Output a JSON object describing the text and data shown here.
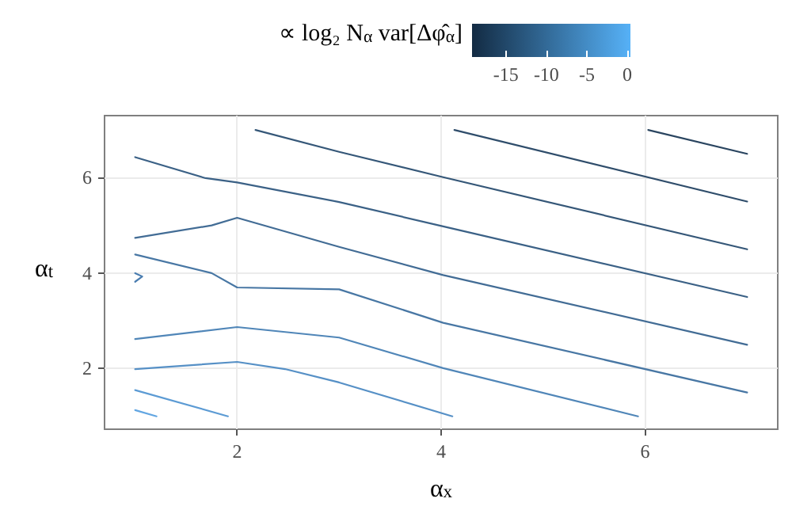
{
  "chart_data": {
    "type": "line",
    "xlabel": "α$_{x}$",
    "ylabel": "α$_{t}$",
    "clabel": "∝ log₂ N$_{α}$ var[Δφ̂$_{α}$]",
    "clim": [
      -19.2,
      0.4
    ],
    "cticks": [
      -15,
      -10,
      -5,
      0
    ],
    "xlim": [
      0.7,
      7.3
    ],
    "ylim": [
      0.73,
      7.3
    ],
    "xticks": [
      2,
      4,
      6
    ],
    "yticks": [
      2,
      4,
      6
    ],
    "grid": true,
    "marker": "none",
    "line_style": "solid",
    "series": [
      {
        "color": "#2a4560",
        "x": [
          6.03,
          7
        ],
        "values": [
          7.0,
          6.5
        ]
      },
      {
        "color": "#2f4d6b",
        "x": [
          4.13,
          7
        ],
        "values": [
          7.0,
          5.5
        ]
      },
      {
        "color": "#355778",
        "x": [
          2.18,
          3.0,
          4.02,
          7
        ],
        "values": [
          7.0,
          6.54,
          6.01,
          4.5
        ]
      },
      {
        "color": "#3b6186",
        "x": [
          1.0,
          1.69,
          2.0,
          3.0,
          4.02,
          7
        ],
        "values": [
          6.43,
          5.99,
          5.9,
          5.49,
          4.98,
          3.5
        ]
      },
      {
        "color": "#426c95",
        "x": [
          1.0,
          1.75,
          2.0,
          3.0,
          4.02,
          7
        ],
        "values": [
          4.74,
          5.0,
          5.16,
          4.55,
          3.96,
          2.5
        ]
      },
      {
        "color": "#4877a4",
        "x": [
          1.0,
          1.75,
          2.0,
          3.0,
          4.02,
          7
        ],
        "values": [
          4.39,
          4.0,
          3.7,
          3.66,
          2.96,
          1.5
        ]
      },
      {
        "color": "#4a7db0",
        "x": [
          1.0,
          1.07,
          1.0
        ],
        "values": [
          4.0,
          3.93,
          3.82
        ]
      },
      {
        "color": "#5086b8",
        "x": [
          1.0,
          2.0,
          3.0,
          4.02,
          5.93
        ],
        "values": [
          2.62,
          2.87,
          2.65,
          2.01,
          1.0
        ]
      },
      {
        "color": "#5690c6",
        "x": [
          1.0,
          2.0,
          2.47,
          3.0,
          4.11
        ],
        "values": [
          1.99,
          2.14,
          1.99,
          1.71,
          1.0
        ]
      },
      {
        "color": "#5c9bd4",
        "x": [
          1.0,
          1.91
        ],
        "values": [
          1.55,
          1.0
        ]
      },
      {
        "color": "#62a6e2",
        "x": [
          1.0,
          1.21
        ],
        "values": [
          1.13,
          1.0
        ]
      }
    ]
  }
}
